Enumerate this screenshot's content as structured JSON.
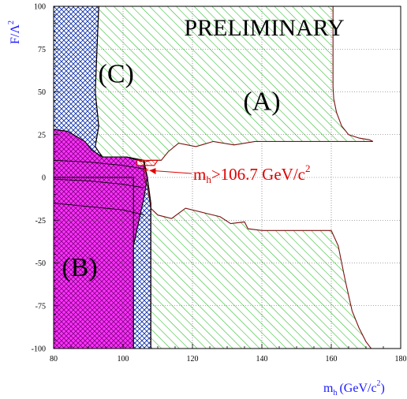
{
  "chart_data": {
    "type": "contour",
    "title": "",
    "xlabel_main": "m",
    "xlabel_sub": "h",
    "xlabel_unit": "(GeV/c",
    "xlabel_unit_sup": "2",
    "xlabel_close": ")",
    "ylabel_main": "F/Λ",
    "ylabel_sup": "2",
    "xlim": [
      80,
      180
    ],
    "ylim": [
      -100,
      100
    ],
    "x_ticks": [
      "80",
      "100",
      "120",
      "140",
      "160",
      "180"
    ],
    "y_ticks": [
      "-100",
      "-75",
      "-50",
      "-25",
      "0",
      "25",
      "50",
      "75",
      "100"
    ],
    "grid": true,
    "watermark": "PRELIMINARY",
    "annotation": {
      "text_main": "m",
      "text_sub": "h",
      "text_rest": ">106.7 GeV/c",
      "text_sup": "2",
      "point": [
        106.7,
        5
      ]
    },
    "regions": [
      {
        "label": "(A)",
        "label_pos": [
          140,
          45
        ],
        "fill": "green-hatch",
        "boundary": [
          [
            93,
            100
          ],
          [
            160.5,
            100
          ],
          [
            160.5,
            53
          ],
          [
            160.7,
            46
          ],
          [
            161.5,
            38
          ],
          [
            163,
            30
          ],
          [
            165,
            25
          ],
          [
            168,
            23
          ],
          [
            171,
            22
          ],
          [
            172,
            21
          ],
          [
            164,
            21
          ],
          [
            150,
            21
          ],
          [
            138,
            21
          ],
          [
            132,
            19
          ],
          [
            126,
            21
          ],
          [
            121,
            18
          ],
          [
            116,
            20
          ],
          [
            113,
            15
          ],
          [
            111,
            10
          ],
          [
            108,
            10
          ],
          [
            106,
            9
          ],
          [
            106,
            0
          ],
          [
            107,
            -5
          ],
          [
            108,
            -18
          ],
          [
            110,
            -22
          ],
          [
            114,
            -24
          ],
          [
            118,
            -18
          ],
          [
            124,
            -21
          ],
          [
            128,
            -23
          ],
          [
            131,
            -27
          ],
          [
            135,
            -26
          ],
          [
            136,
            -30
          ],
          [
            140,
            -31
          ],
          [
            150,
            -31
          ],
          [
            160,
            -31
          ],
          [
            162,
            -40
          ],
          [
            164,
            -60
          ],
          [
            166,
            -78
          ],
          [
            168,
            -88
          ],
          [
            170,
            -96
          ],
          [
            171.5,
            -100
          ],
          [
            108,
            -100
          ],
          [
            108,
            -15
          ],
          [
            107,
            0
          ],
          [
            106,
            10
          ],
          [
            101,
            12
          ],
          [
            94,
            12
          ],
          [
            92,
            18
          ],
          [
            93,
            30
          ],
          [
            92,
            50
          ],
          [
            93,
            100
          ]
        ]
      },
      {
        "label": "(C)",
        "label_pos": [
          98,
          61
        ],
        "fill": "blue-crosshatch",
        "boundary": [
          [
            80,
            100
          ],
          [
            93,
            100
          ],
          [
            92,
            50
          ],
          [
            93,
            30
          ],
          [
            92,
            18
          ],
          [
            94,
            12
          ],
          [
            101,
            12
          ],
          [
            106,
            10
          ],
          [
            107,
            0
          ],
          [
            108,
            -15
          ],
          [
            108,
            -100
          ],
          [
            103,
            -100
          ],
          [
            103,
            0
          ],
          [
            80,
            0
          ]
        ]
      },
      {
        "label": "(B)",
        "label_pos": [
          87.5,
          -52
        ],
        "fill": "magenta-crosshatch",
        "boundary": [
          [
            80,
            28
          ],
          [
            84,
            27
          ],
          [
            89,
            21
          ],
          [
            91,
            16
          ],
          [
            94,
            12
          ],
          [
            101,
            12
          ],
          [
            106,
            9
          ],
          [
            107,
            0
          ],
          [
            106,
            -12
          ],
          [
            103,
            -40
          ],
          [
            103,
            -100
          ],
          [
            80,
            -100
          ]
        ]
      },
      {
        "label": "",
        "fill": "red-hatch",
        "boundary": [
          [
            104,
            10
          ],
          [
            110,
            10
          ],
          [
            109,
            7
          ],
          [
            104,
            7
          ]
        ]
      }
    ]
  }
}
